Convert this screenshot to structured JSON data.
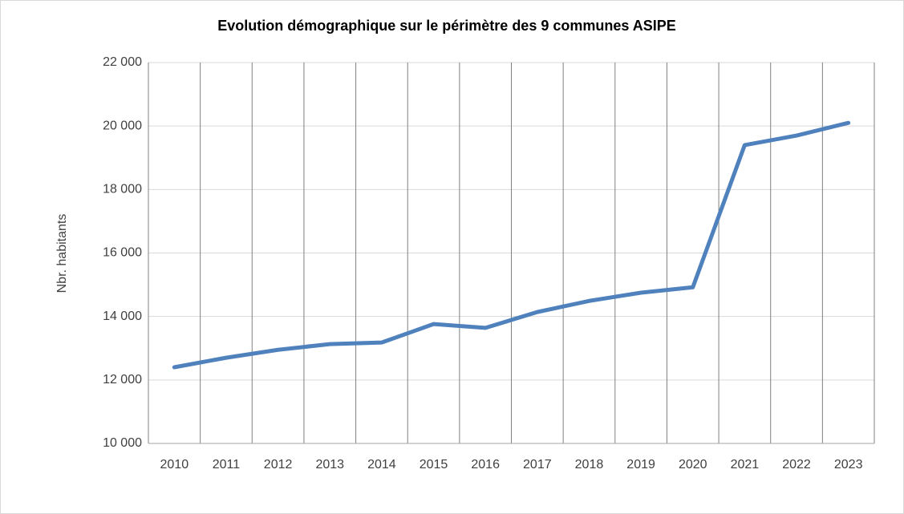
{
  "chart_data": {
    "type": "line",
    "title": "Evolution démographique sur le périmètre des 9 communes ASIPE",
    "y_label": "Nbr. habitants",
    "categories": [
      "2010",
      "2011",
      "2012",
      "2013",
      "2014",
      "2015",
      "2016",
      "2017",
      "2018",
      "2019",
      "2020",
      "2021",
      "2022",
      "2023"
    ],
    "series": [
      {
        "name": "Nbr. habitants",
        "color": "#4f81bd",
        "values": [
          12400,
          12700,
          12950,
          13130,
          13180,
          13760,
          13640,
          14140,
          14490,
          14750,
          14920,
          19400,
          19700,
          20100
        ]
      }
    ],
    "ylim": [
      10000,
      22000
    ],
    "yticks": [
      {
        "value": 10000,
        "label": "10 000"
      },
      {
        "value": 12000,
        "label": "12 000"
      },
      {
        "value": 14000,
        "label": "14 000"
      },
      {
        "value": 16000,
        "label": "16 000"
      },
      {
        "value": 18000,
        "label": "18 000"
      },
      {
        "value": 20000,
        "label": "20 000"
      },
      {
        "value": 22000,
        "label": "22 000"
      }
    ],
    "grid": true
  }
}
